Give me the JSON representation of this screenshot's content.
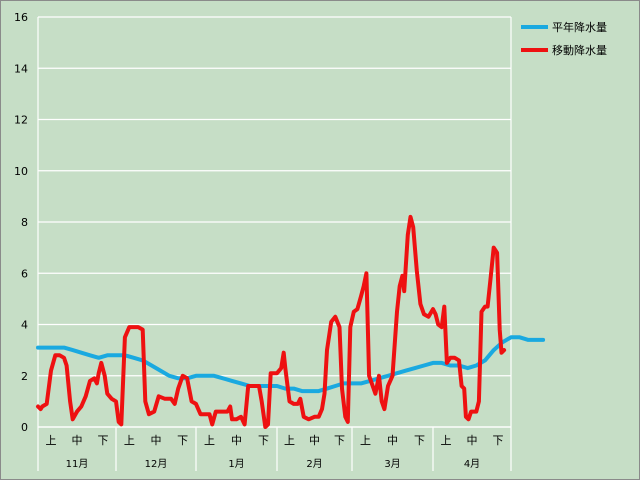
{
  "chart_data": {
    "type": "line",
    "ylim": [
      0,
      16
    ],
    "yticks": [
      0,
      2,
      4,
      6,
      8,
      10,
      12,
      14,
      16
    ],
    "months": [
      "11月",
      "12月",
      "1月",
      "2月",
      "3月",
      "4月"
    ],
    "dekads": [
      "上",
      "中",
      "下"
    ],
    "grid": true,
    "legend_position": "top-right",
    "colors": {
      "background": "#c6dec6",
      "grid": "#ffffff"
    },
    "series": [
      {
        "name": "平年降水量",
        "color": "#1aa9e0",
        "points": [
          [
            0,
            3.1
          ],
          [
            3,
            3.1
          ],
          [
            4,
            3.0
          ],
          [
            5,
            2.9
          ],
          [
            6,
            2.8
          ],
          [
            7,
            2.7
          ],
          [
            8,
            2.8
          ],
          [
            9,
            2.8
          ],
          [
            10,
            2.8
          ],
          [
            11,
            2.7
          ],
          [
            12,
            2.6
          ],
          [
            13,
            2.4
          ],
          [
            14,
            2.2
          ],
          [
            15,
            2.0
          ],
          [
            16,
            1.9
          ],
          [
            17,
            1.9
          ],
          [
            18,
            2.0
          ],
          [
            19,
            2.0
          ],
          [
            20,
            2.0
          ],
          [
            21,
            1.9
          ],
          [
            22,
            1.8
          ],
          [
            23,
            1.7
          ],
          [
            24,
            1.6
          ],
          [
            25,
            1.6
          ],
          [
            26,
            1.6
          ],
          [
            27,
            1.6
          ],
          [
            28,
            1.5
          ],
          [
            29,
            1.5
          ],
          [
            30,
            1.4
          ],
          [
            31,
            1.4
          ],
          [
            32,
            1.4
          ],
          [
            33,
            1.5
          ],
          [
            34,
            1.6
          ],
          [
            35,
            1.7
          ],
          [
            36,
            1.7
          ],
          [
            37,
            1.7
          ],
          [
            38,
            1.8
          ],
          [
            39,
            1.9
          ],
          [
            40,
            2.0
          ],
          [
            41,
            2.1
          ],
          [
            42,
            2.2
          ],
          [
            43,
            2.3
          ],
          [
            44,
            2.4
          ],
          [
            45,
            2.5
          ],
          [
            46,
            2.5
          ],
          [
            47,
            2.4
          ],
          [
            48,
            2.4
          ],
          [
            49,
            2.3
          ],
          [
            50,
            2.4
          ],
          [
            51,
            2.6
          ],
          [
            52,
            3.0
          ],
          [
            53,
            3.3
          ],
          [
            54,
            3.5
          ],
          [
            55,
            3.5
          ],
          [
            56,
            3.4
          ],
          [
            57,
            3.4
          ],
          [
            57.7,
            3.4
          ]
        ]
      },
      {
        "name": "移動降水量",
        "color": "#ee1111",
        "points": [
          [
            0,
            0.8
          ],
          [
            0.3,
            0.7
          ],
          [
            0.5,
            0.8
          ],
          [
            1,
            0.9
          ],
          [
            1.5,
            2.2
          ],
          [
            2,
            2.8
          ],
          [
            2.5,
            2.8
          ],
          [
            3,
            2.7
          ],
          [
            3.3,
            2.4
          ],
          [
            3.7,
            1.0
          ],
          [
            4,
            0.3
          ],
          [
            4.5,
            0.6
          ],
          [
            5,
            0.8
          ],
          [
            5.5,
            1.2
          ],
          [
            6,
            1.8
          ],
          [
            6.5,
            1.9
          ],
          [
            6.8,
            1.7
          ],
          [
            7,
            2.1
          ],
          [
            7.3,
            2.5
          ],
          [
            7.7,
            2.0
          ],
          [
            8,
            1.3
          ],
          [
            8.5,
            1.1
          ],
          [
            9,
            1.0
          ],
          [
            9.3,
            0.2
          ],
          [
            9.6,
            0.1
          ],
          [
            10,
            3.5
          ],
          [
            10.5,
            3.9
          ],
          [
            11.5,
            3.9
          ],
          [
            12,
            3.8
          ],
          [
            12.3,
            1.0
          ],
          [
            12.7,
            0.5
          ],
          [
            13.3,
            0.6
          ],
          [
            13.8,
            1.2
          ],
          [
            14.5,
            1.1
          ],
          [
            15.2,
            1.1
          ],
          [
            15.6,
            0.9
          ],
          [
            16,
            1.5
          ],
          [
            16.5,
            2.0
          ],
          [
            17,
            1.9
          ],
          [
            17.5,
            1.0
          ],
          [
            18,
            0.9
          ],
          [
            18.5,
            0.5
          ],
          [
            19,
            0.5
          ],
          [
            19.5,
            0.5
          ],
          [
            19.8,
            0.1
          ],
          [
            20.2,
            0.6
          ],
          [
            21,
            0.6
          ],
          [
            21.5,
            0.6
          ],
          [
            21.8,
            0.8
          ],
          [
            22,
            0.3
          ],
          [
            22.5,
            0.3
          ],
          [
            23,
            0.4
          ],
          [
            23.4,
            0.1
          ],
          [
            23.8,
            1.6
          ],
          [
            24.5,
            1.6
          ],
          [
            25,
            1.6
          ],
          [
            25.3,
            1.0
          ],
          [
            25.7,
            0.0
          ],
          [
            26,
            0.1
          ],
          [
            26.3,
            2.1
          ],
          [
            27,
            2.1
          ],
          [
            27.5,
            2.3
          ],
          [
            27.8,
            2.9
          ],
          [
            28,
            2.3
          ],
          [
            28.5,
            1.0
          ],
          [
            29,
            0.9
          ],
          [
            29.5,
            0.9
          ],
          [
            29.8,
            1.1
          ],
          [
            30.2,
            0.4
          ],
          [
            30.8,
            0.3
          ],
          [
            31.5,
            0.4
          ],
          [
            32,
            0.4
          ],
          [
            32.4,
            0.7
          ],
          [
            32.7,
            1.3
          ],
          [
            33,
            3.0
          ],
          [
            33.5,
            4.1
          ],
          [
            34,
            4.3
          ],
          [
            34.5,
            3.9
          ],
          [
            34.8,
            1.5
          ],
          [
            35.2,
            0.4
          ],
          [
            35.5,
            0.2
          ],
          [
            35.8,
            3.9
          ],
          [
            36.2,
            4.5
          ],
          [
            36.6,
            4.6
          ],
          [
            37,
            5.1
          ],
          [
            37.3,
            5.5
          ],
          [
            37.6,
            6.0
          ],
          [
            37.9,
            2.0
          ],
          [
            38.3,
            1.6
          ],
          [
            38.6,
            1.3
          ],
          [
            39,
            2.0
          ],
          [
            39.3,
            1.0
          ],
          [
            39.6,
            0.7
          ],
          [
            40,
            1.6
          ],
          [
            40.5,
            2.0
          ],
          [
            41,
            4.5
          ],
          [
            41.3,
            5.5
          ],
          [
            41.6,
            5.9
          ],
          [
            41.8,
            5.3
          ],
          [
            42.2,
            7.5
          ],
          [
            42.5,
            8.2
          ],
          [
            42.8,
            7.8
          ],
          [
            43.2,
            6.1
          ],
          [
            43.6,
            4.8
          ],
          [
            44,
            4.4
          ],
          [
            44.5,
            4.3
          ],
          [
            45,
            4.6
          ],
          [
            45.3,
            4.4
          ],
          [
            45.6,
            4.0
          ],
          [
            46,
            3.9
          ],
          [
            46.3,
            4.7
          ],
          [
            46.6,
            2.5
          ],
          [
            47,
            2.7
          ],
          [
            47.5,
            2.7
          ],
          [
            48,
            2.6
          ],
          [
            48.3,
            1.6
          ],
          [
            48.6,
            1.5
          ],
          [
            48.8,
            0.4
          ],
          [
            49.1,
            0.3
          ],
          [
            49.4,
            0.6
          ],
          [
            50,
            0.6
          ],
          [
            50.3,
            1.0
          ],
          [
            50.6,
            4.5
          ],
          [
            51,
            4.7
          ],
          [
            51.3,
            4.7
          ],
          [
            51.7,
            6.0
          ],
          [
            52,
            7.0
          ],
          [
            52.4,
            6.8
          ],
          [
            52.7,
            3.8
          ],
          [
            52.9,
            2.9
          ],
          [
            53.2,
            3.0
          ]
        ]
      }
    ]
  }
}
